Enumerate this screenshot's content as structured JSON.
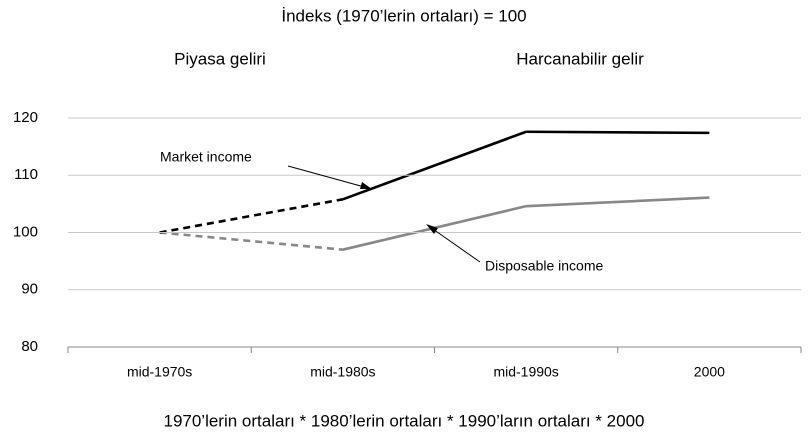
{
  "chart_data": {
    "type": "line",
    "subtitle": "İndeks (1970’lerin ortaları) = 100",
    "panel_labels": [
      "Piyasa geliri",
      "Harcanabilir gelir"
    ],
    "categories": [
      "mid-1970s",
      "mid-1980s",
      "mid-1990s",
      "2000"
    ],
    "series": [
      {
        "name": "Market income",
        "color": "#000000",
        "segment_styles": [
          "dashed",
          "solid",
          "solid"
        ],
        "values": [
          100,
          105.8,
          117.6,
          117.4
        ]
      },
      {
        "name": "Disposable income",
        "color": "#888888",
        "segment_styles": [
          "dashed",
          "solid",
          "solid"
        ],
        "values": [
          100,
          97,
          104.6,
          106.1
        ]
      }
    ],
    "ylim": [
      80,
      120
    ],
    "yticks": [
      80,
      90,
      100,
      110,
      120
    ],
    "grid": true,
    "caption": "1970’lerin ortaları * 1980’lerin ortaları * 1990’ların ortaları * 2000"
  }
}
